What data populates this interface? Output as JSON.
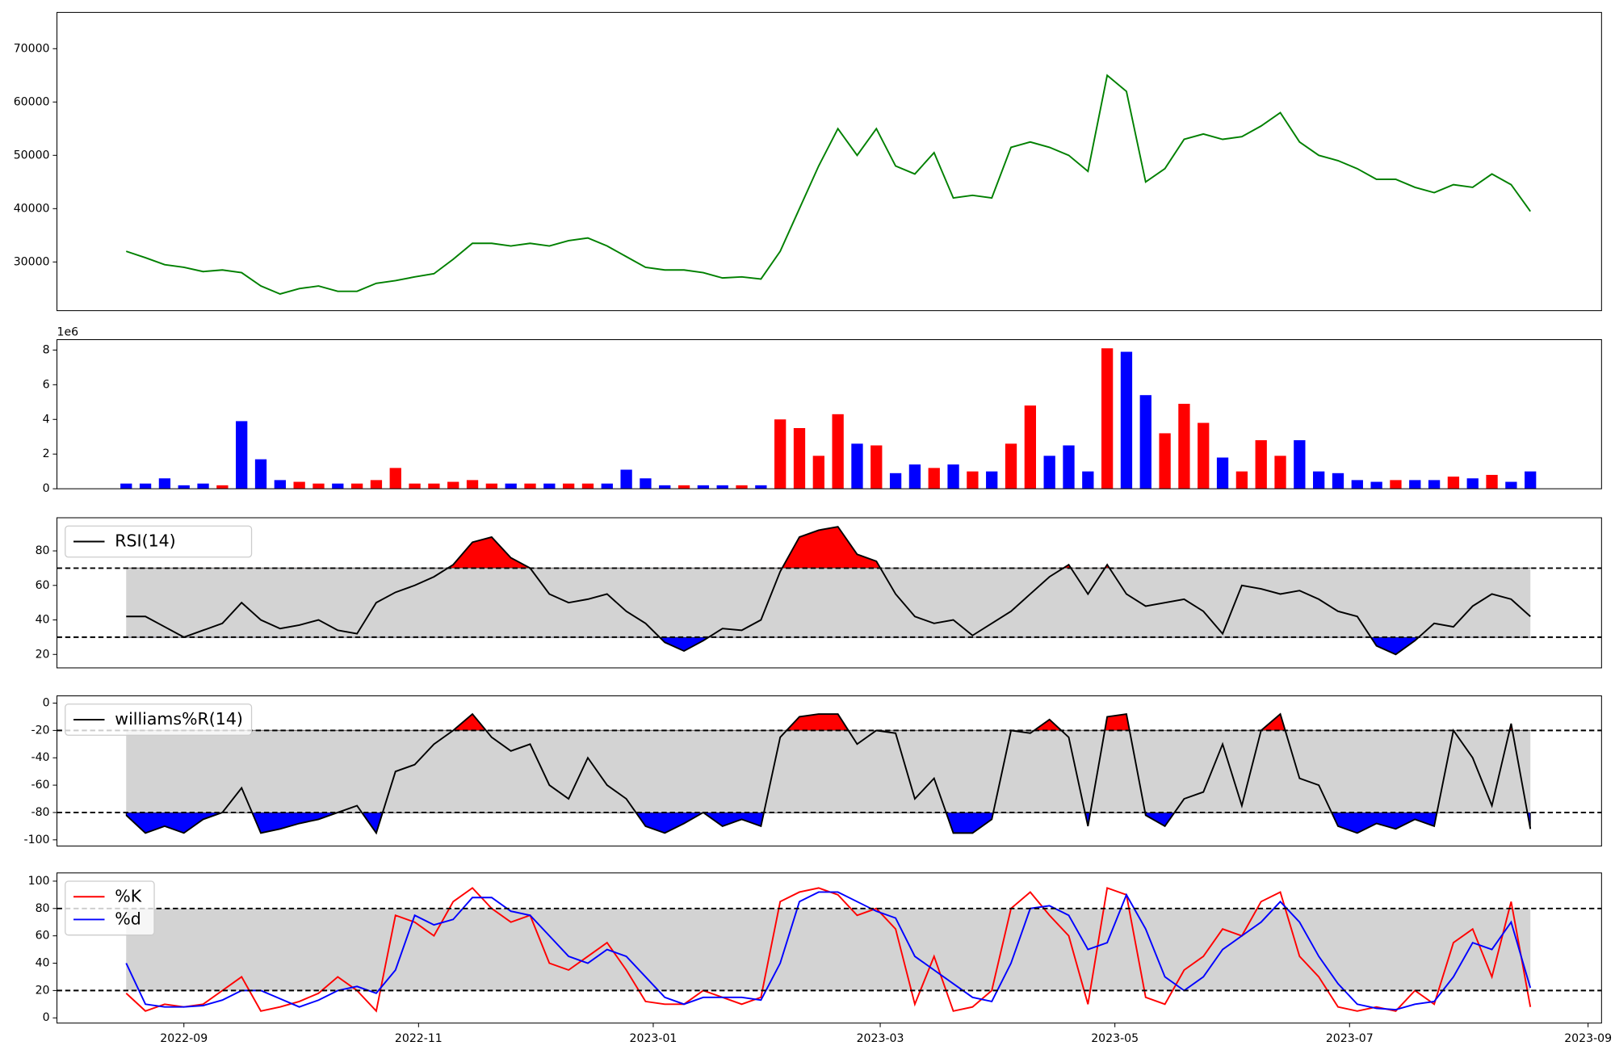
{
  "chart_data": [
    {
      "type": "line",
      "color": "green",
      "categories": [
        null,
        null,
        null,
        null,
        null,
        null,
        null,
        null,
        null,
        null,
        null,
        null,
        null,
        null,
        null,
        null,
        null,
        null,
        null,
        null,
        null,
        null,
        null,
        null,
        null,
        null,
        null,
        null,
        null,
        null,
        null,
        null,
        null,
        null,
        null,
        null,
        null,
        null,
        null,
        null,
        null,
        null,
        null,
        null,
        null,
        null,
        null,
        null,
        null,
        null,
        null,
        null,
        null,
        null,
        null,
        null,
        null,
        null,
        null,
        null,
        null,
        null,
        null,
        null,
        null,
        null,
        null,
        null,
        null,
        null,
        null,
        null,
        null,
        null
      ],
      "values": [
        32000,
        30800,
        29500,
        29000,
        28200,
        28500,
        28000,
        25500,
        24000,
        25000,
        25500,
        24500,
        24500,
        26000,
        26500,
        27200,
        27800,
        30500,
        33500,
        33500,
        33000,
        33500,
        33000,
        34000,
        34500,
        33000,
        31000,
        29000,
        28500,
        28500,
        28000,
        27000,
        27200,
        26800,
        32000,
        40000,
        48000,
        55000,
        50000,
        55000,
        48000,
        46500,
        50500,
        42000,
        42500,
        42000,
        51500,
        52500,
        51500,
        50000,
        47000,
        65000,
        62000,
        45000,
        47500,
        53000,
        54000,
        53000,
        53500,
        55500,
        58000,
        52500,
        50000,
        49000,
        47500,
        45500,
        45500,
        44000,
        43000,
        44500,
        44000,
        46500,
        44500,
        39500
      ],
      "xlim": [
        -3.6,
        76.7
      ],
      "ylim": [
        20870,
        76800
      ],
      "yticks": [
        30000,
        40000,
        50000,
        60000,
        70000
      ]
    },
    {
      "type": "bar",
      "up_color": "red",
      "down_color": "blue",
      "axis_offset_label": "1e6",
      "categories": [
        null,
        null,
        null,
        null,
        null,
        null,
        null,
        null,
        null,
        null,
        null,
        null,
        null,
        null,
        null,
        null,
        null,
        null,
        null,
        null,
        null,
        null,
        null,
        null,
        null,
        null,
        null,
        null,
        null,
        null,
        null,
        null,
        null,
        null,
        null,
        null,
        null,
        null,
        null,
        null,
        null,
        null,
        null,
        null,
        null,
        null,
        null,
        null,
        null,
        null,
        null,
        null,
        null,
        null,
        null,
        null,
        null,
        null,
        null,
        null,
        null,
        null,
        null,
        null,
        null,
        null,
        null,
        null,
        null,
        null,
        null,
        null,
        null,
        null
      ],
      "values": [
        0.3,
        0.3,
        0.6,
        0.2,
        0.3,
        0.2,
        3.9,
        1.7,
        0.5,
        0.4,
        0.3,
        0.3,
        0.3,
        0.5,
        1.2,
        0.3,
        0.3,
        0.4,
        0.5,
        0.3,
        0.3,
        0.3,
        0.3,
        0.3,
        0.3,
        0.3,
        1.1,
        0.6,
        0.2,
        0.2,
        0.2,
        0.2,
        0.2,
        0.2,
        4.0,
        3.5,
        1.9,
        4.3,
        2.6,
        2.5,
        0.9,
        1.4,
        1.2,
        1.4,
        1.0,
        1.0,
        2.6,
        4.8,
        1.9,
        2.5,
        1.0,
        8.1,
        7.9,
        5.4,
        3.2,
        4.9,
        3.8,
        1.8,
        1.0,
        2.8,
        1.9,
        2.8,
        1.0,
        0.9,
        0.5,
        0.4,
        0.5,
        0.5,
        0.5,
        0.7,
        0.6,
        0.8,
        0.4,
        1.0
      ],
      "reference_values": [
        32000,
        30800,
        29500,
        29000,
        28200,
        28500,
        28000,
        25500,
        24000,
        25000,
        25500,
        24500,
        24500,
        26000,
        26500,
        27200,
        27800,
        30500,
        33500,
        33500,
        33000,
        33500,
        33000,
        34000,
        34500,
        33000,
        31000,
        29000,
        28500,
        28500,
        28000,
        27000,
        27200,
        26800,
        32000,
        40000,
        48000,
        55000,
        50000,
        55000,
        48000,
        46500,
        50500,
        42000,
        42500,
        42000,
        51500,
        52500,
        51500,
        50000,
        47000,
        65000,
        62000,
        45000,
        47500,
        53000,
        54000,
        53000,
        53500,
        55500,
        58000,
        52500,
        50000,
        49000,
        47500,
        45500,
        45500,
        44000,
        43000,
        44500,
        44000,
        46500,
        44500,
        39500
      ],
      "xlim": [
        -3.6,
        76.7
      ],
      "ylim": [
        0,
        8.6
      ],
      "yticks": [
        0,
        2,
        4,
        6,
        8
      ]
    },
    {
      "type": "line",
      "legend": "upper left",
      "band": [
        30,
        70
      ],
      "band_color": "#d3d3d3",
      "levels": [
        30,
        70
      ],
      "fill_above_color": "red",
      "fill_below_color": "blue",
      "categories": [
        null,
        null,
        null,
        null,
        null,
        null,
        null,
        null,
        null,
        null,
        null,
        null,
        null,
        null,
        null,
        null,
        null,
        null,
        null,
        null,
        null,
        null,
        null,
        null,
        null,
        null,
        null,
        null,
        null,
        null,
        null,
        null,
        null,
        null,
        null,
        null,
        null,
        null,
        null,
        null,
        null,
        null,
        null,
        null,
        null,
        null,
        null,
        null,
        null,
        null,
        null,
        null,
        null,
        null,
        null,
        null,
        null,
        null,
        null,
        null,
        null,
        null,
        null,
        null,
        null,
        null,
        null,
        null,
        null,
        null,
        null,
        null,
        null,
        null
      ],
      "series": [
        {
          "name": "RSI(14)",
          "color": "black",
          "values": [
            42,
            42,
            36,
            30,
            34,
            38,
            50,
            40,
            35,
            37,
            40,
            34,
            32,
            50,
            56,
            60,
            65,
            72,
            85,
            88,
            76,
            70,
            55,
            50,
            52,
            55,
            45,
            38,
            27,
            22,
            28,
            35,
            34,
            40,
            68,
            88,
            92,
            94,
            78,
            74,
            55,
            42,
            38,
            40,
            31,
            38,
            45,
            55,
            65,
            72,
            55,
            72,
            55,
            48,
            50,
            52,
            45,
            32,
            60,
            58,
            55,
            57,
            52,
            45,
            42,
            25,
            20,
            28,
            38,
            36,
            48,
            55,
            52,
            42
          ]
        }
      ],
      "xlim": [
        -3.6,
        76.7
      ],
      "ylim": [
        12.2,
        99.2
      ],
      "yticks": [
        20,
        40,
        60,
        80
      ]
    },
    {
      "type": "line",
      "legend": "upper left",
      "band": [
        -80,
        -20
      ],
      "band_color": "#d3d3d3",
      "levels": [
        -80,
        -20
      ],
      "fill_above_color": "red",
      "fill_below_color": "blue",
      "categories": [
        null,
        null,
        null,
        null,
        null,
        null,
        null,
        null,
        null,
        null,
        null,
        null,
        null,
        null,
        null,
        null,
        null,
        null,
        null,
        null,
        null,
        null,
        null,
        null,
        null,
        null,
        null,
        null,
        null,
        null,
        null,
        null,
        null,
        null,
        null,
        null,
        null,
        null,
        null,
        null,
        null,
        null,
        null,
        null,
        null,
        null,
        null,
        null,
        null,
        null,
        null,
        null,
        null,
        null,
        null,
        null,
        null,
        null,
        null,
        null,
        null,
        null,
        null,
        null,
        null,
        null,
        null,
        null,
        null,
        null,
        null,
        null,
        null,
        null
      ],
      "series": [
        {
          "name": "williams%R(14)",
          "color": "black",
          "values": [
            -82,
            -95,
            -90,
            -95,
            -85,
            -80,
            -62,
            -95,
            -92,
            -88,
            -85,
            -80,
            -75,
            -95,
            -50,
            -45,
            -30,
            -20,
            -8,
            -25,
            -35,
            -30,
            -60,
            -70,
            -40,
            -60,
            -70,
            -90,
            -95,
            -88,
            -80,
            -90,
            -85,
            -90,
            -25,
            -10,
            -8,
            -8,
            -30,
            -20,
            -22,
            -70,
            -55,
            -95,
            -95,
            -85,
            -20,
            -22,
            -12,
            -25,
            -90,
            -10,
            -8,
            -82,
            -90,
            -70,
            -65,
            -30,
            -75,
            -20,
            -8,
            -55,
            -60,
            -90,
            -95,
            -88,
            -92,
            -85,
            -90,
            -20,
            -40,
            -75,
            -15,
            -92
          ]
        }
      ],
      "xlim": [
        -3.6,
        76.7
      ],
      "ylim": [
        -104.5,
        5.3
      ],
      "yticks": [
        -100,
        -80,
        -60,
        -40,
        -20,
        0
      ]
    },
    {
      "type": "line",
      "legend": "upper left",
      "band": [
        20,
        80
      ],
      "band_color": "#d3d3d3",
      "levels": [
        20,
        80
      ],
      "categories": [
        null,
        null,
        null,
        null,
        null,
        null,
        null,
        null,
        null,
        null,
        null,
        null,
        null,
        null,
        null,
        null,
        null,
        null,
        null,
        null,
        null,
        null,
        null,
        null,
        null,
        null,
        null,
        null,
        null,
        null,
        null,
        null,
        null,
        null,
        null,
        null,
        null,
        null,
        null,
        null,
        null,
        null,
        null,
        null,
        null,
        null,
        null,
        null,
        null,
        null,
        null,
        null,
        null,
        null,
        null,
        null,
        null,
        null,
        null,
        null,
        null,
        null,
        null,
        null,
        null,
        null,
        null,
        null,
        null,
        null,
        null,
        null,
        null,
        null
      ],
      "series": [
        {
          "name": "%K",
          "color": "red",
          "values": [
            18,
            5,
            10,
            8,
            10,
            20,
            30,
            5,
            8,
            12,
            18,
            30,
            20,
            5,
            75,
            70,
            60,
            85,
            95,
            80,
            70,
            75,
            40,
            35,
            45,
            55,
            35,
            12,
            10,
            10,
            20,
            15,
            10,
            15,
            85,
            92,
            95,
            90,
            75,
            80,
            65,
            10,
            45,
            5,
            8,
            20,
            80,
            92,
            75,
            60,
            10,
            95,
            90,
            15,
            10,
            35,
            45,
            65,
            60,
            85,
            92,
            45,
            30,
            8,
            5,
            8,
            5,
            20,
            10,
            55,
            65,
            30,
            85,
            8
          ]
        },
        {
          "name": "%d",
          "color": "blue",
          "values": [
            40,
            10,
            8,
            8,
            9,
            13,
            20,
            20,
            14,
            8,
            13,
            20,
            23,
            18,
            35,
            75,
            68,
            72,
            88,
            88,
            78,
            75,
            60,
            45,
            40,
            50,
            45,
            30,
            15,
            10,
            15,
            15,
            15,
            13,
            40,
            85,
            92,
            92,
            85,
            78,
            73,
            45,
            35,
            25,
            15,
            12,
            40,
            80,
            82,
            75,
            50,
            55,
            90,
            65,
            30,
            20,
            30,
            50,
            60,
            70,
            85,
            70,
            45,
            25,
            10,
            7,
            6,
            10,
            12,
            30,
            55,
            50,
            70,
            22
          ]
        }
      ],
      "xlim": [
        -3.6,
        76.7
      ],
      "ylim": [
        -3.8,
        106
      ],
      "yticks": [
        0,
        20,
        40,
        60,
        80,
        100
      ],
      "xticks": [
        {
          "value": 3,
          "label": "2022-09"
        },
        {
          "value": 15.2,
          "label": "2022-11"
        },
        {
          "value": 27.4,
          "label": "2023-01"
        },
        {
          "value": 39.2,
          "label": "2023-03"
        },
        {
          "value": 51.4,
          "label": "2023-05"
        },
        {
          "value": 63.6,
          "label": "2023-07"
        },
        {
          "value": 76,
          "label": "2023-09"
        }
      ]
    }
  ]
}
